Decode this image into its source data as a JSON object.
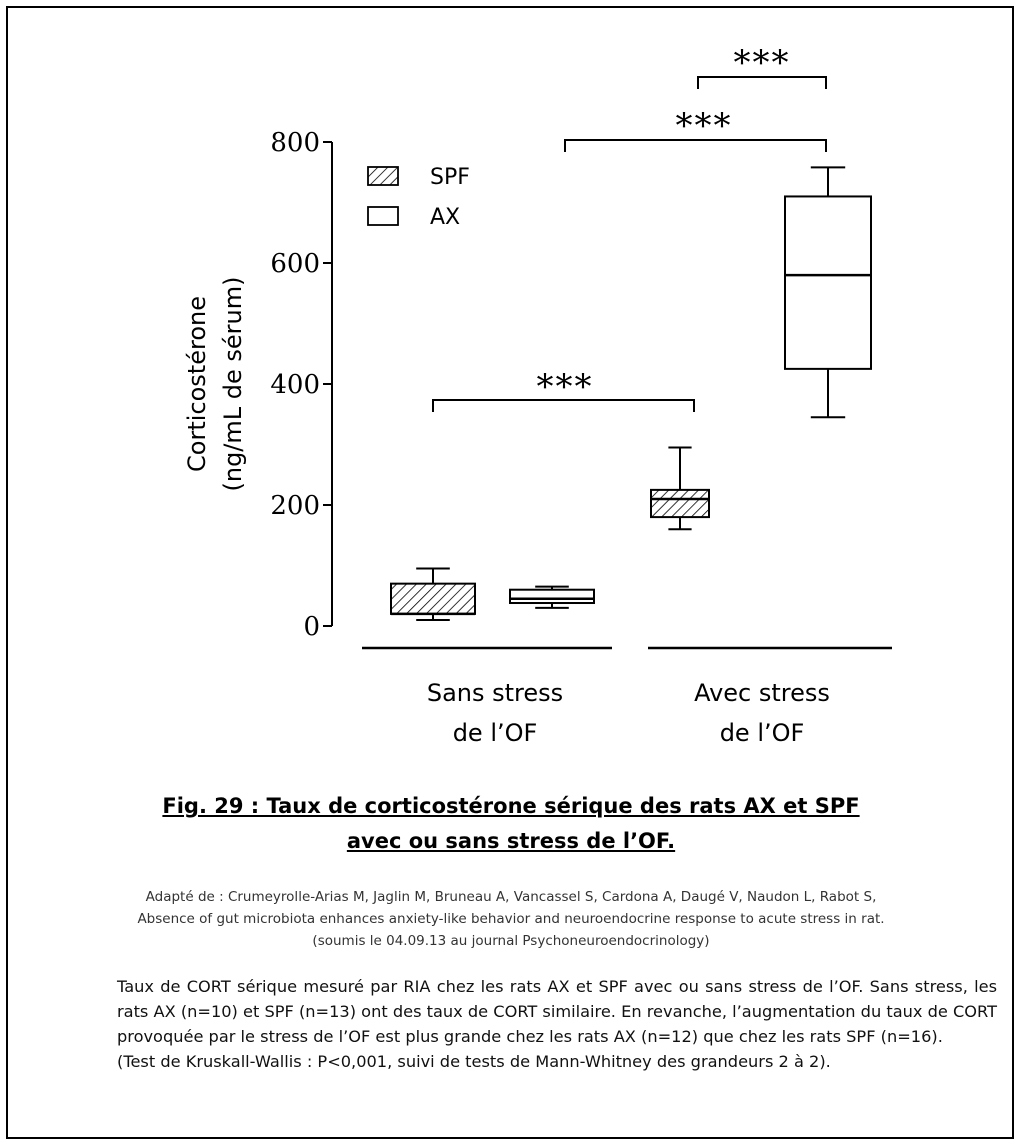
{
  "chart_data": {
    "type": "box",
    "ylabel_line1": "Corticostérone",
    "ylabel_line2": "(ng/mL de sérum)",
    "ylim": [
      0,
      800
    ],
    "yticks": [
      0,
      200,
      400,
      600,
      800
    ],
    "groups": [
      {
        "label_line1": "Sans stress",
        "label_line2": "de l’OF"
      },
      {
        "label_line1": "Avec  stress",
        "label_line2": "de l’OF"
      }
    ],
    "legend": [
      {
        "name": "SPF",
        "pattern": "hatched"
      },
      {
        "name": "AX",
        "pattern": "open"
      }
    ],
    "series": [
      {
        "name": "SPF",
        "boxes": [
          {
            "group": "Sans stress de l’OF",
            "min": 10,
            "q1": 20,
            "median": 20,
            "q3": 70,
            "max": 95
          },
          {
            "group": "Avec  stress de l’OF",
            "min": 160,
            "q1": 180,
            "median": 210,
            "q3": 225,
            "max": 295
          }
        ]
      },
      {
        "name": "AX",
        "boxes": [
          {
            "group": "Sans stress de l’OF",
            "min": 30,
            "q1": 38,
            "median": 45,
            "q3": 60,
            "max": 65
          },
          {
            "group": "Avec  stress de l’OF",
            "min": 345,
            "q1": 425,
            "median": 580,
            "q3": 710,
            "max": 758
          }
        ]
      }
    ],
    "significance": [
      {
        "between": "SPF sans stress vs SPF avec stress",
        "label": "***"
      },
      {
        "between": "AX sans stress vs AX avec stress",
        "label": "***"
      },
      {
        "between": "SPF avec stress vs AX avec stress",
        "label": "***"
      }
    ],
    "colors": {
      "axis": "#000000",
      "box_fill_open": "#ffffff",
      "hatch": "#000000"
    }
  },
  "caption": {
    "line1": "Fig. 29 : Taux de corticostérone sérique des rats AX et SPF",
    "line2": "avec ou sans stress de l’OF."
  },
  "source": {
    "line1": "Adapté de : Crumeyrolle-Arias M, Jaglin M, Bruneau A, Vancassel S, Cardona A, Daugé V, Naudon L, Rabot S,",
    "line2": "Absence of gut microbiota enhances anxiety-like behavior and neuroendocrine response to acute stress in rat.",
    "line3": "(soumis le 04.09.13 au journal Psychoneuroendocrinology)"
  },
  "description": {
    "paragraph": "Taux de CORT sérique mesuré par RIA chez les rats AX  et SPF  avec ou sans stress de l’OF. Sans stress, les rats AX (n=10) et SPF (n=13) ont des taux de CORT similaire. En revanche, l’augmentation du taux de CORT provoquée par le stress de l’OF est plus grande chez les rats AX (n=12) que chez les rats SPF (n=16).",
    "test": " (Test de Kruskall-Wallis : P<0,001, suivi de tests de Mann-Whitney des grandeurs 2 à 2)."
  }
}
